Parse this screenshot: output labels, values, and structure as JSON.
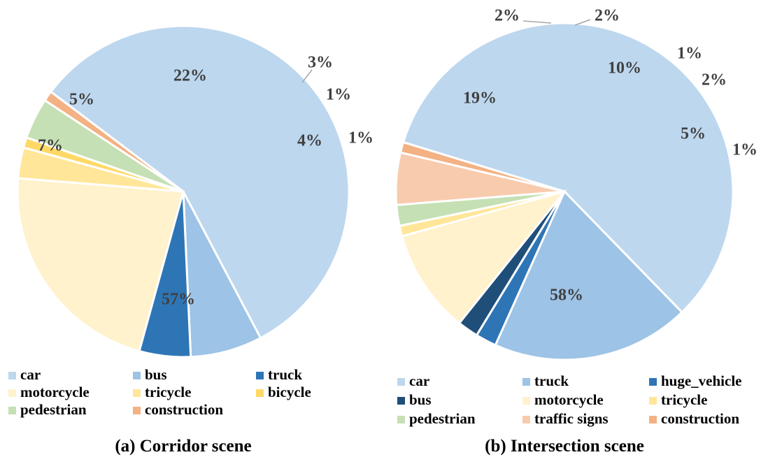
{
  "chart_data": [
    {
      "type": "pie",
      "caption": "(a) Corridor scene",
      "slices": [
        {
          "name": "car",
          "value": 57,
          "label": "57%",
          "color": "#BDD7EE"
        },
        {
          "name": "bus",
          "value": 7,
          "label": "7%",
          "color": "#9DC3E6"
        },
        {
          "name": "truck",
          "value": 5,
          "label": "5%",
          "color": "#2E75B6"
        },
        {
          "name": "motorcycle",
          "value": 22,
          "label": "22%",
          "color": "#FFF2CC"
        },
        {
          "name": "tricycle",
          "value": 3,
          "label": "3%",
          "color": "#FFE699"
        },
        {
          "name": "bicycle",
          "value": 1,
          "label": "1%",
          "color": "#FFD966"
        },
        {
          "name": "pedestrian",
          "value": 4,
          "label": "4%",
          "color": "#C5E0B4"
        },
        {
          "name": "construction",
          "value": 1,
          "label": "1%",
          "color": "#F4B183"
        }
      ]
    },
    {
      "type": "pie",
      "caption": "(b) Intersection scene",
      "slices": [
        {
          "name": "car",
          "value": 58,
          "label": "58%",
          "color": "#BDD7EE"
        },
        {
          "name": "truck",
          "value": 19,
          "label": "19%",
          "color": "#9DC3E6"
        },
        {
          "name": "huge_vehicle",
          "value": 2,
          "label": "2%",
          "color": "#2E75B6"
        },
        {
          "name": "bus",
          "value": 2,
          "label": "2%",
          "color": "#1F4E79"
        },
        {
          "name": "motorcycle",
          "value": 10,
          "label": "10%",
          "color": "#FFF2CC"
        },
        {
          "name": "tricycle",
          "value": 1,
          "label": "1%",
          "color": "#FFE699"
        },
        {
          "name": "pedestrian",
          "value": 2,
          "label": "2%",
          "color": "#C5E0B4"
        },
        {
          "name": "traffic signs",
          "value": 5,
          "label": "5%",
          "color": "#F8CBAD"
        },
        {
          "name": "construction",
          "value": 1,
          "label": "1%",
          "color": "#F4B183"
        }
      ]
    }
  ]
}
